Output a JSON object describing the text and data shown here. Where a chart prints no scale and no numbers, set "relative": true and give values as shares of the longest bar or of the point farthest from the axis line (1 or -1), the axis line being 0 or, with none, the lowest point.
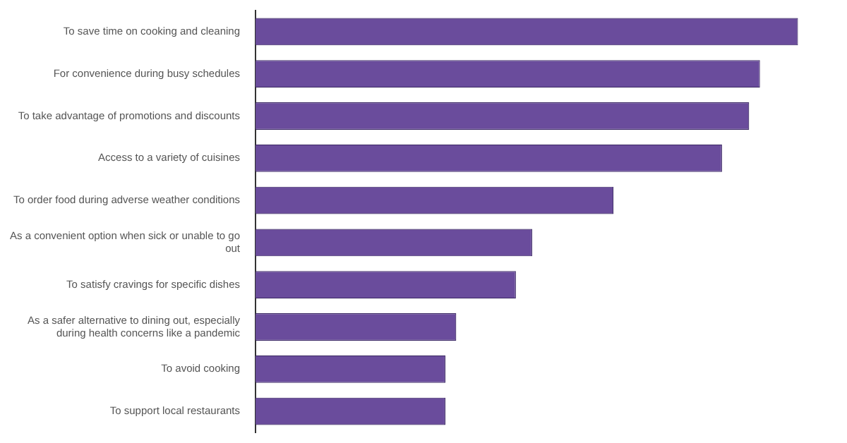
{
  "chart_data": {
    "type": "bar",
    "orientation": "horizontal",
    "relative": true,
    "color": "#6a4c9c",
    "categories": [
      "To save time on cooking and cleaning",
      "For convenience during busy schedules",
      "To take advantage of promotions and discounts",
      "Access to a variety of cuisines",
      "To order food during adverse weather conditions",
      "As a convenient option when sick or unable to go out",
      "To satisfy cravings for specific dishes",
      "As a safer alternative to dining out, especially during health concerns like a pandemic",
      "To avoid cooking",
      "To support local restaurants"
    ],
    "values": [
      1,
      0.93,
      0.91,
      0.86,
      0.66,
      0.51,
      0.48,
      0.37,
      0.35,
      0.35
    ]
  }
}
